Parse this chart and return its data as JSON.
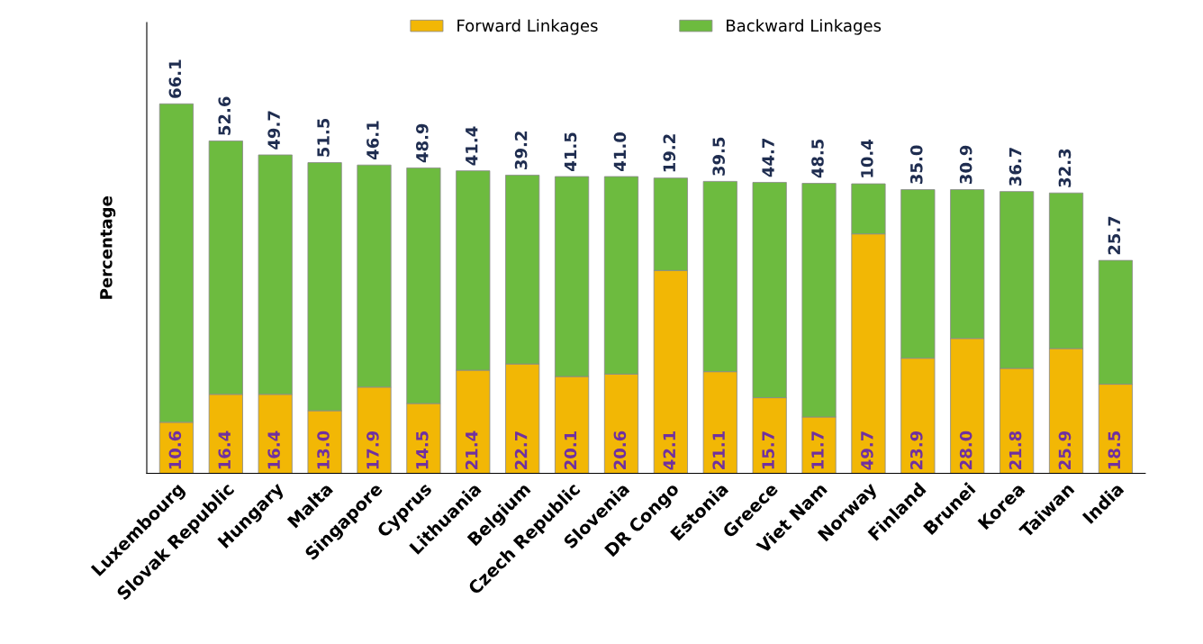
{
  "chart_data": {
    "type": "bar",
    "stacked": true,
    "ylabel": "Percentage",
    "legend": "top",
    "grid": false,
    "categories": [
      "Luxembourg",
      "Slovak Republic",
      "Hungary",
      "Malta",
      "Singapore",
      "Cyprus",
      "Lithuania",
      "Belgium",
      "Czech Republic",
      "Slovenia",
      "DR Congo",
      "Estonia",
      "Greece",
      "Viet Nam",
      "Norway",
      "Finland",
      "Brunei",
      "Korea",
      "Taiwan",
      "India"
    ],
    "series": [
      {
        "name": "Forward Linkages",
        "color": "#f2b705",
        "values": [
          10.6,
          16.4,
          16.4,
          13.0,
          17.9,
          14.5,
          21.4,
          22.7,
          20.1,
          20.6,
          42.1,
          21.1,
          15.7,
          11.7,
          49.7,
          23.9,
          28.0,
          21.8,
          25.9,
          18.5
        ],
        "value_labels": [
          "10.6",
          "16.4",
          "16.4",
          "13.0",
          "17.9",
          "14.5",
          "21.4",
          "22.7",
          "20.1",
          "20.6",
          "42.1",
          "21.1",
          "15.7",
          "11.7",
          "49.7",
          "23.9",
          "28.0",
          "21.8",
          "25.9",
          "18.5"
        ]
      },
      {
        "name": "Backward Linkages",
        "color": "#6dbb3f",
        "values": [
          66.1,
          52.6,
          49.7,
          51.5,
          46.1,
          48.9,
          41.4,
          39.2,
          41.5,
          41.0,
          19.2,
          39.5,
          44.7,
          48.5,
          10.4,
          35.0,
          30.9,
          36.7,
          32.3,
          25.7
        ],
        "value_labels": [
          "66.1",
          "52.6",
          "49.7",
          "51.5",
          "46.1",
          "48.9",
          "41.4",
          "39.2",
          "41.5",
          "41.0",
          "19.2",
          "39.5",
          "44.7",
          "48.5",
          "10.4",
          "35.0",
          "30.9",
          "36.7",
          "32.3",
          "25.7"
        ]
      }
    ]
  }
}
